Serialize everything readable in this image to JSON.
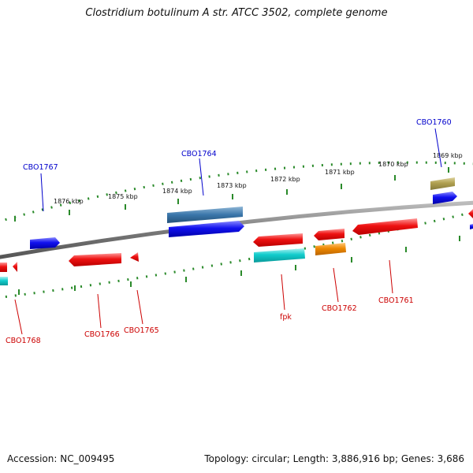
{
  "title": "Clostridium botulinum A str. ATCC 3502, complete genome",
  "footer": {
    "accession": "Accession: NC_009495",
    "summary": "Topology: circular; Length: 3,886,916 bp; Genes: 3,686"
  },
  "colors": {
    "backbone": "#7a7a7a",
    "tick": "#2a8a2a",
    "label_plus": "#0000cc",
    "label_minus": "#cc0000",
    "red_feature": "#ee1111",
    "blue_feature": "#1111ee",
    "steelblue_feature": "#3a76aa",
    "cyan_feature": "#11cccc",
    "orange_feature": "#ee8800",
    "olive_feature": "#b0a050"
  },
  "scale_labels": [
    "1876 kbp",
    "1875 kbp",
    "1874 kbp",
    "1873 kbp",
    "1872 kbp",
    "1871 kbp",
    "1870 kbp",
    "1869 kbp"
  ],
  "gene_labels": {
    "plus": [
      "CBO1767",
      "CBO1764",
      "CBO1760"
    ],
    "minus": [
      "CBO1768",
      "CBO1766",
      "CBO1765",
      "fpk",
      "CBO1762",
      "CBO1761"
    ]
  }
}
